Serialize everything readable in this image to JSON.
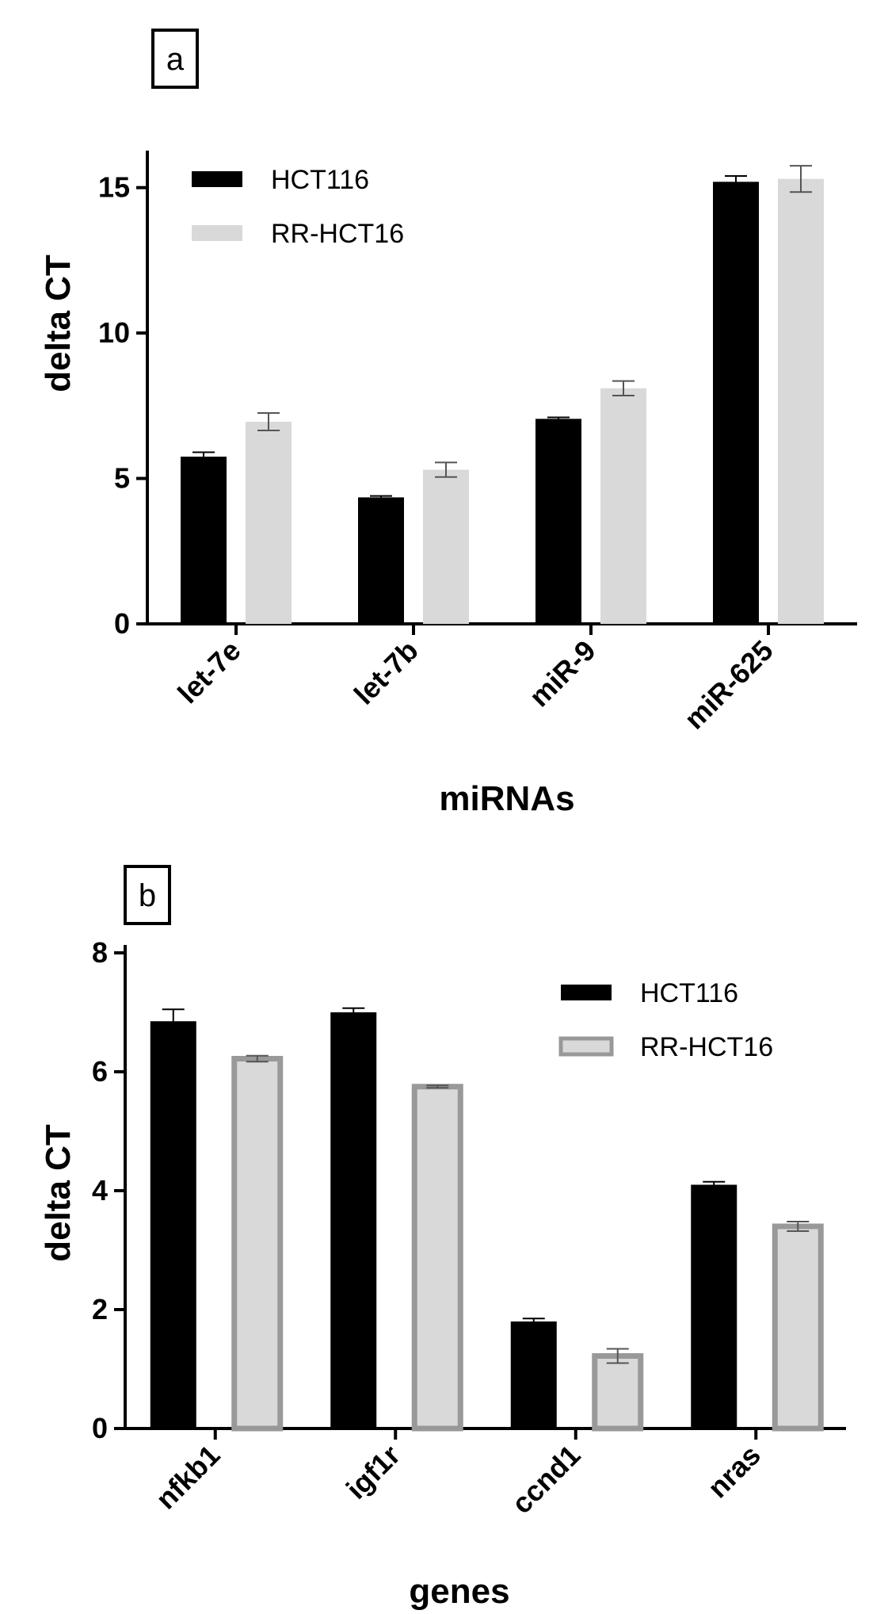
{
  "chart_data": [
    {
      "panel_label": "a",
      "type": "bar",
      "categories": [
        "let-7e",
        "let-7b",
        "miR-9",
        "miR-625"
      ],
      "series": [
        {
          "name": "HCT116",
          "values": [
            5.75,
            4.35,
            7.05,
            15.2
          ],
          "errors": [
            0.15,
            0.05,
            0.05,
            0.2
          ],
          "color": "#000000"
        },
        {
          "name": "RR-HCT16",
          "values": [
            6.95,
            5.3,
            8.1,
            15.3
          ],
          "errors": [
            0.3,
            0.25,
            0.25,
            0.45
          ],
          "color": "#d9d9d9"
        }
      ],
      "xlabel": "miRNAs",
      "ylabel": "delta CT",
      "ylim": [
        0,
        16
      ],
      "yticks": [
        0,
        5,
        10,
        15
      ],
      "legend_position": "top-left",
      "grid": false
    },
    {
      "panel_label": "b",
      "type": "bar",
      "categories": [
        "nfkb1",
        "igf1r",
        "ccnd1",
        "nras"
      ],
      "series": [
        {
          "name": "HCT116",
          "values": [
            6.85,
            7.0,
            1.8,
            4.1
          ],
          "errors": [
            0.2,
            0.07,
            0.05,
            0.05
          ],
          "color": "#000000"
        },
        {
          "name": "RR-HCT16",
          "values": [
            6.22,
            5.75,
            1.22,
            3.4
          ],
          "errors": [
            0.05,
            0.02,
            0.12,
            0.08
          ],
          "color": "#d9d9d9",
          "edge_color": "#999999"
        }
      ],
      "xlabel": "genes",
      "ylabel": "delta CT",
      "ylim": [
        0,
        8
      ],
      "yticks": [
        0,
        2,
        4,
        6,
        8
      ],
      "legend_position": "top-right",
      "grid": false
    }
  ]
}
